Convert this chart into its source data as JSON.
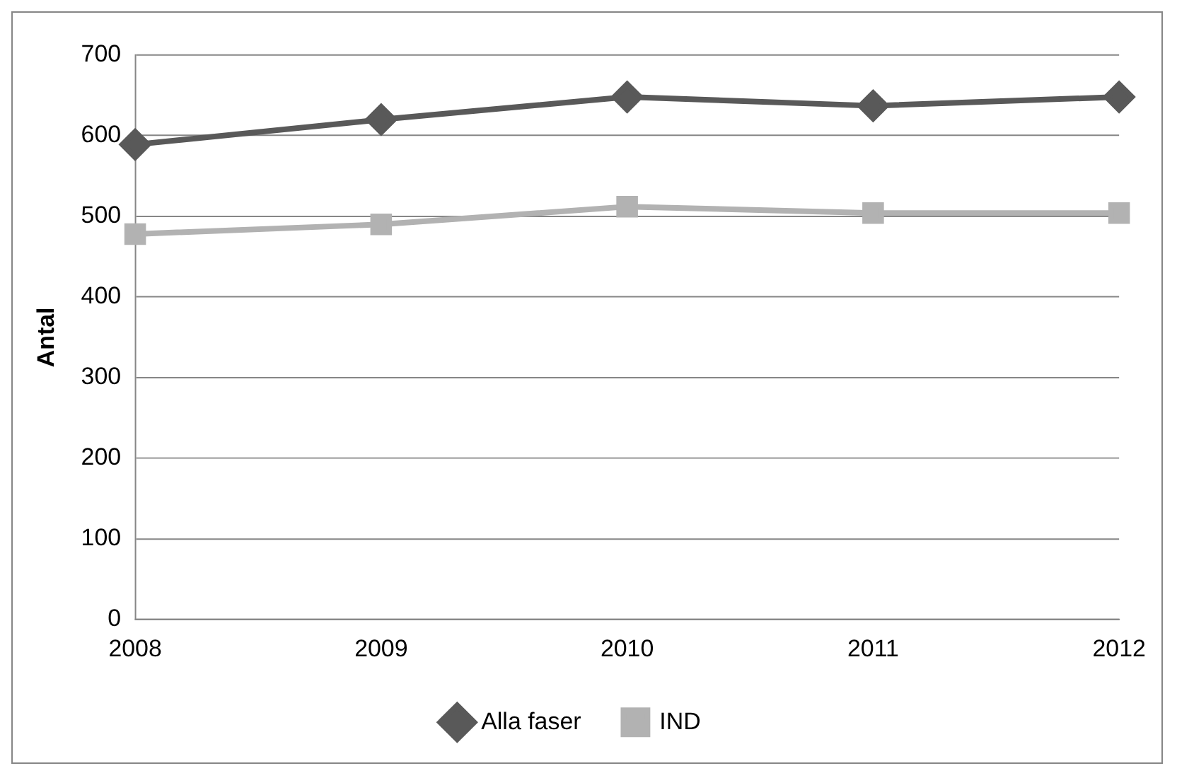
{
  "chart_data": {
    "type": "line",
    "ylabel": "Antal",
    "categories": [
      "2008",
      "2009",
      "2010",
      "2011",
      "2012"
    ],
    "series": [
      {
        "name": "Alla faser",
        "color": "#595959",
        "marker": "diamond",
        "values": [
          589,
          620,
          648,
          637,
          648
        ]
      },
      {
        "name": "IND",
        "color": "#b2b2b2",
        "marker": "square",
        "values": [
          478,
          490,
          512,
          504,
          504
        ]
      }
    ],
    "ylim": [
      0,
      700
    ],
    "yticks": [
      0,
      100,
      200,
      300,
      400,
      500,
      600,
      700
    ],
    "grid": "y",
    "legend": "bottom"
  }
}
